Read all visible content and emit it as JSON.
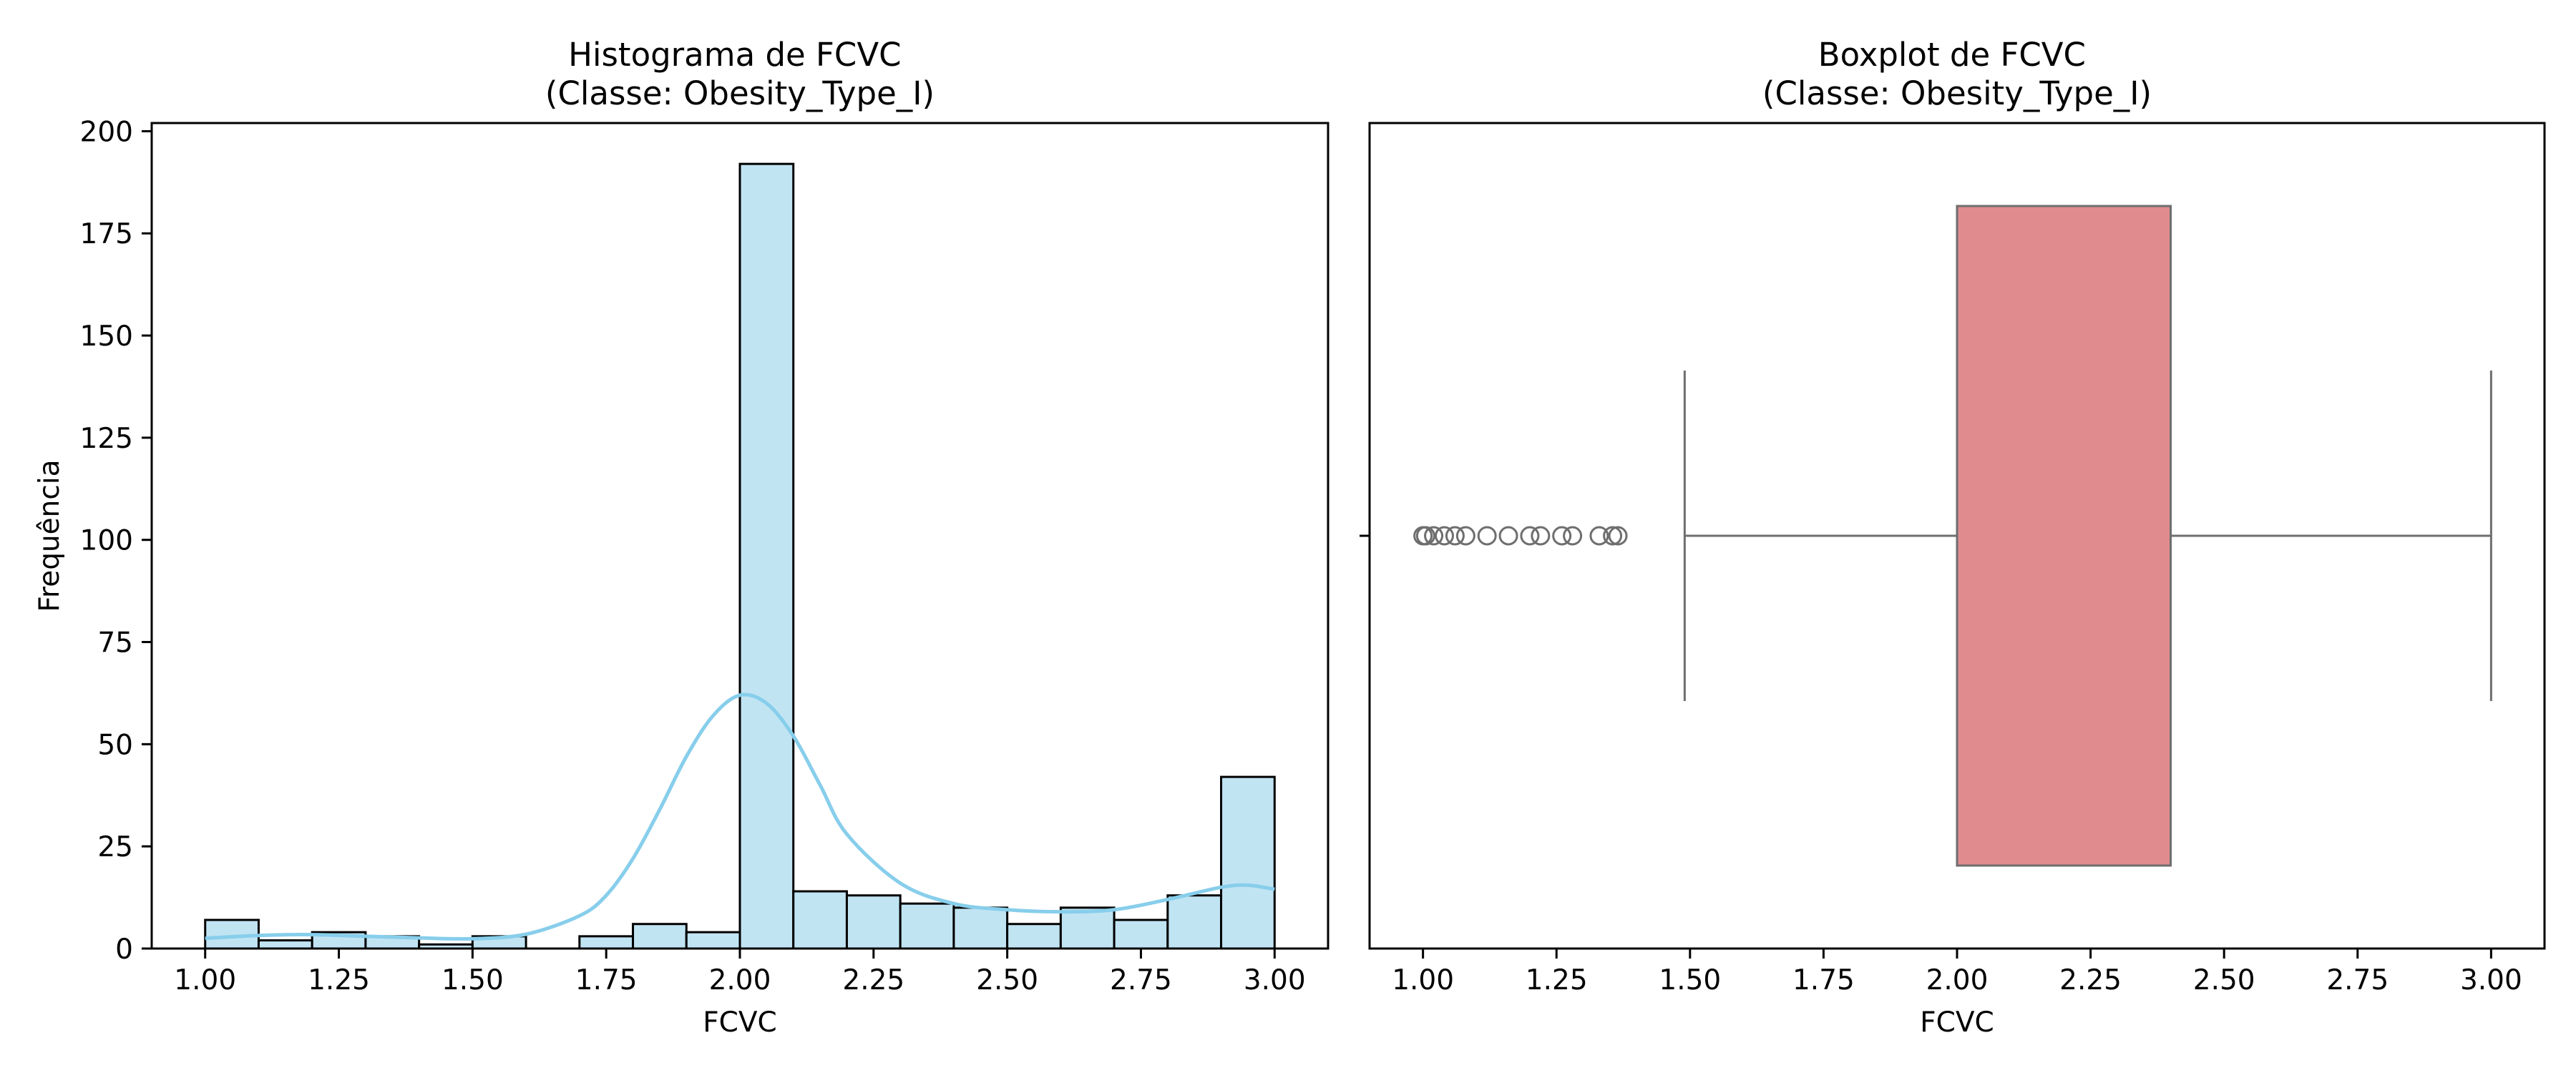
{
  "chart_data": [
    {
      "type": "histogram",
      "title": "Histograma de FCVC\n(Classe: Obesity_Type_I)",
      "xlabel": "FCVC",
      "ylabel": "Frequência",
      "xlim": [
        0.9,
        3.1
      ],
      "ylim": [
        0,
        202
      ],
      "xticks": [
        "1.00",
        "1.25",
        "1.50",
        "1.75",
        "2.00",
        "2.25",
        "2.50",
        "2.75",
        "3.00"
      ],
      "yticks": [
        "0",
        "25",
        "50",
        "75",
        "100",
        "125",
        "150",
        "175",
        "200"
      ],
      "bin_edges": [
        1.0,
        1.1,
        1.2,
        1.3,
        1.4,
        1.5,
        1.6,
        1.7,
        1.8,
        1.9,
        2.0,
        2.1,
        2.2,
        2.3,
        2.4,
        2.5,
        2.6,
        2.7,
        2.8,
        2.9,
        3.0
      ],
      "counts": [
        7,
        2,
        4,
        3,
        1,
        3,
        0,
        3,
        6,
        4,
        192,
        14,
        13,
        11,
        10,
        6,
        10,
        7,
        13,
        42
      ],
      "bar_color": "#c1e4f3",
      "edge_color": "#000000",
      "kde": {
        "color": "#87ceeb",
        "x": [
          1.0,
          1.1,
          1.2,
          1.3,
          1.4,
          1.5,
          1.6,
          1.7,
          1.75,
          1.8,
          1.85,
          1.9,
          1.95,
          2.0,
          2.05,
          2.1,
          2.15,
          2.2,
          2.3,
          2.4,
          2.5,
          2.6,
          2.7,
          2.8,
          2.9,
          2.95,
          3.0
        ],
        "y": [
          2.5,
          3.2,
          3.4,
          3.0,
          2.6,
          2.4,
          3.5,
          8.0,
          13,
          22,
          34,
          47,
          57,
          62,
          60,
          52,
          40,
          28,
          16,
          11,
          9.5,
          9.0,
          9.5,
          12,
          15,
          15.5,
          14.5
        ]
      }
    },
    {
      "type": "boxplot",
      "title": "Boxplot de FCVC\n(Classe: Obesity_Type_I)",
      "xlabel": "FCVC",
      "xlim": [
        0.9,
        3.1
      ],
      "xticks": [
        "1.00",
        "1.25",
        "1.50",
        "1.75",
        "2.00",
        "2.25",
        "2.50",
        "2.75",
        "3.00"
      ],
      "box_color": "#e08c8f",
      "edge_color": "#6e6e6e",
      "q1": 2.0,
      "median": 2.0,
      "q3": 2.4,
      "whisker_low": 1.49,
      "whisker_high": 3.0,
      "outliers": [
        1.0,
        1.005,
        1.02,
        1.04,
        1.06,
        1.08,
        1.12,
        1.16,
        1.2,
        1.22,
        1.26,
        1.28,
        1.33,
        1.355,
        1.365
      ]
    }
  ]
}
